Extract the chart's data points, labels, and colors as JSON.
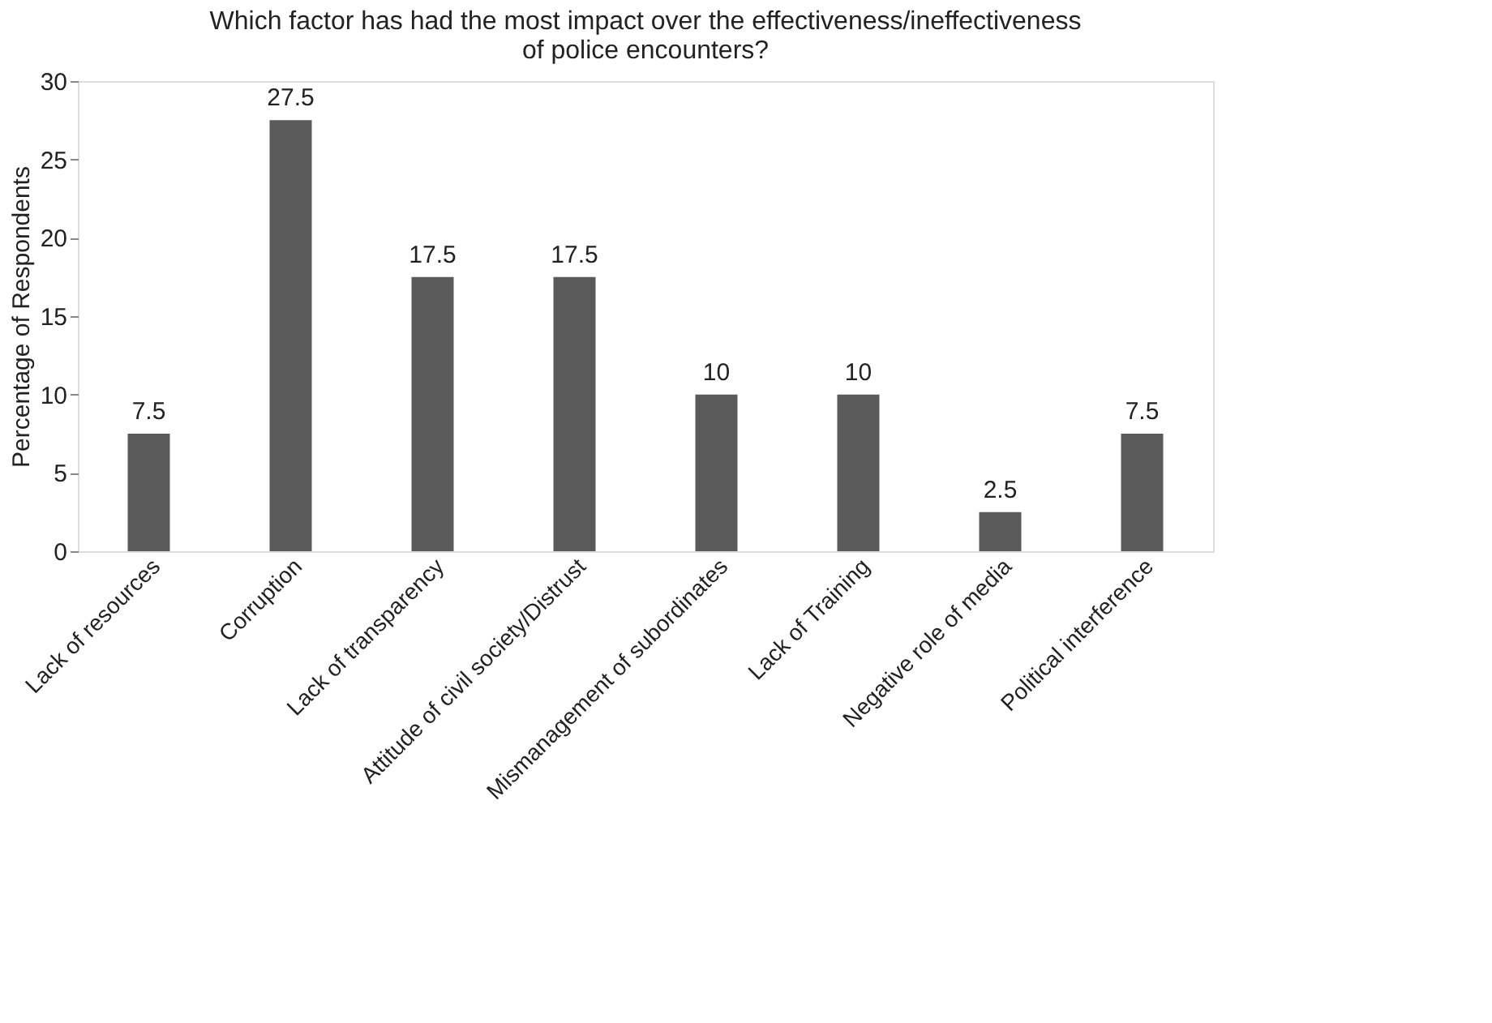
{
  "chart_data": {
    "type": "bar",
    "title": [
      "Which factor has had the most impact over the effectiveness/ineffectiveness",
      "of police encounters?"
    ],
    "ylabel": "Percentage of Respondents",
    "categories": [
      "Lack of resources",
      "Corruption",
      "Lack of transparency",
      "Attitude of civil society/Distrust",
      "Mismanagement of subordinates",
      "Lack of Training",
      "Negative role of media",
      "Political interference"
    ],
    "values": [
      7.5,
      27.5,
      17.5,
      17.5,
      10,
      10,
      2.5,
      7.5
    ],
    "color": "#5a5a5a",
    "ylim": [
      0,
      30
    ],
    "yticks": [
      0,
      5,
      10,
      15,
      20,
      25,
      30
    ],
    "data_labels": true,
    "grid": false
  }
}
